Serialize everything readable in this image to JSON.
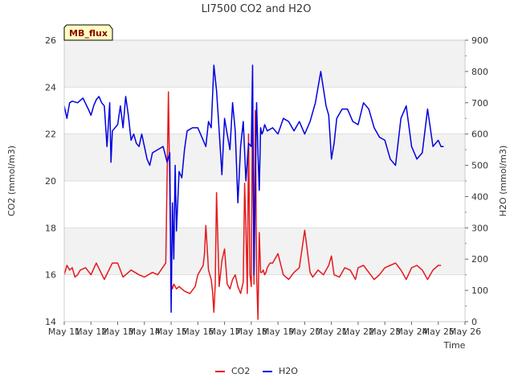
{
  "chart_data": {
    "type": "line",
    "title": "LI7500 CO2 and H2O",
    "badge": "MB_flux",
    "xlabel": "Time",
    "ylabel_left": "CO2 (mmol/m3)",
    "ylabel_right": "H2O (mmol/m3)",
    "xlim": [
      11,
      26
    ],
    "ylim_left": [
      14,
      26
    ],
    "ylim_right": [
      0,
      900
    ],
    "x_ticks": [
      11,
      12,
      13,
      14,
      15,
      16,
      17,
      18,
      19,
      20,
      21,
      22,
      23,
      24,
      25,
      26
    ],
    "x_tick_labels": [
      "May 11",
      "May 12",
      "May 13",
      "May 14",
      "May 15",
      "May 16",
      "May 17",
      "May 18",
      "May 19",
      "May 20",
      "May 21",
      "May 22",
      "May 23",
      "May 24",
      "May 25",
      "May 26"
    ],
    "y_left_ticks": [
      14,
      16,
      18,
      20,
      22,
      24,
      26
    ],
    "y_left_tick_labels": [
      "14",
      "16",
      "18",
      "20",
      "22",
      "24",
      "26"
    ],
    "y_right_ticks": [
      0,
      100,
      200,
      300,
      400,
      500,
      600,
      700,
      800,
      900
    ],
    "y_right_tick_labels": [
      "0",
      "100",
      "200",
      "300",
      "400",
      "500",
      "600",
      "700",
      "800",
      "900"
    ],
    "grid": "horizontal bands",
    "legend_position": "bottom-center",
    "series": [
      {
        "name": "CO2",
        "axis": "left",
        "color": "#e31a1c",
        "x": [
          11.0,
          11.1,
          11.2,
          11.3,
          11.4,
          11.5,
          11.6,
          11.8,
          12.0,
          12.2,
          12.5,
          12.8,
          13.0,
          13.2,
          13.5,
          13.8,
          14.0,
          14.3,
          14.5,
          14.8,
          14.9,
          15.0,
          15.05,
          15.1,
          15.15,
          15.2,
          15.3,
          15.5,
          15.7,
          15.9,
          16.0,
          16.1,
          16.2,
          16.25,
          16.3,
          16.4,
          16.5,
          16.55,
          16.6,
          16.65,
          16.7,
          16.8,
          16.9,
          17.0,
          17.1,
          17.2,
          17.3,
          17.4,
          17.5,
          17.6,
          17.7,
          17.75,
          17.8,
          17.85,
          17.9,
          17.95,
          18.0,
          18.05,
          18.1,
          18.15,
          18.2,
          18.25,
          18.3,
          18.35,
          18.4,
          18.45,
          18.5,
          18.55,
          18.6,
          18.7,
          18.8,
          19.0,
          19.2,
          19.4,
          19.6,
          19.8,
          20.0,
          20.2,
          20.3,
          20.5,
          20.7,
          20.9,
          21.0,
          21.1,
          21.3,
          21.5,
          21.7,
          21.9,
          22.0,
          22.2,
          22.4,
          22.6,
          22.8,
          23.0,
          23.2,
          23.4,
          23.6,
          23.8,
          24.0,
          24.2,
          24.4,
          24.6,
          24.8,
          25.0,
          25.1
        ],
        "values": [
          16.0,
          16.4,
          16.2,
          16.3,
          15.9,
          16.0,
          16.2,
          16.3,
          16.0,
          16.5,
          15.8,
          16.5,
          16.5,
          15.9,
          16.2,
          16.0,
          15.9,
          16.1,
          16.0,
          16.5,
          23.8,
          15.6,
          15.4,
          15.6,
          15.5,
          15.4,
          15.5,
          15.3,
          15.2,
          15.5,
          16.0,
          16.2,
          16.4,
          16.9,
          18.1,
          16.2,
          15.8,
          15.3,
          14.4,
          15.6,
          19.5,
          15.5,
          16.6,
          17.1,
          15.6,
          15.4,
          15.8,
          16.0,
          15.5,
          15.2,
          15.7,
          19.9,
          18.0,
          15.2,
          22.0,
          16.0,
          15.5,
          24.2,
          15.6,
          23.0,
          16.0,
          14.1,
          17.8,
          16.1,
          16.1,
          16.2,
          16.0,
          16.1,
          16.3,
          16.5,
          16.5,
          16.9,
          16.0,
          15.8,
          16.1,
          16.3,
          17.9,
          16.1,
          15.9,
          16.2,
          16.0,
          16.4,
          16.8,
          16.0,
          15.9,
          16.3,
          16.2,
          15.8,
          16.3,
          16.4,
          16.1,
          15.8,
          16.0,
          16.3,
          16.4,
          16.5,
          16.2,
          15.8,
          16.3,
          16.4,
          16.2,
          15.8,
          16.2,
          16.4,
          16.4
        ]
      },
      {
        "name": "H2O",
        "axis": "right",
        "color": "#0000e0",
        "x": [
          11.0,
          11.1,
          11.2,
          11.3,
          11.5,
          11.7,
          11.9,
          12.0,
          12.1,
          12.2,
          12.3,
          12.4,
          12.5,
          12.6,
          12.7,
          12.75,
          12.8,
          12.9,
          13.0,
          13.1,
          13.2,
          13.3,
          13.4,
          13.5,
          13.6,
          13.7,
          13.8,
          13.9,
          14.0,
          14.1,
          14.2,
          14.3,
          14.5,
          14.7,
          14.85,
          14.95,
          15.0,
          15.05,
          15.1,
          15.15,
          15.2,
          15.3,
          15.4,
          15.5,
          15.6,
          15.8,
          16.0,
          16.1,
          16.2,
          16.3,
          16.4,
          16.5,
          16.6,
          16.7,
          16.8,
          16.9,
          17.0,
          17.1,
          17.2,
          17.3,
          17.4,
          17.5,
          17.6,
          17.7,
          17.8,
          17.9,
          18.0,
          18.05,
          18.1,
          18.2,
          18.25,
          18.3,
          18.35,
          18.4,
          18.45,
          18.5,
          18.6,
          18.8,
          19.0,
          19.2,
          19.4,
          19.6,
          19.8,
          20.0,
          20.2,
          20.4,
          20.6,
          20.8,
          20.9,
          21.0,
          21.1,
          21.2,
          21.4,
          21.6,
          21.8,
          22.0,
          22.2,
          22.4,
          22.6,
          22.8,
          23.0,
          23.2,
          23.4,
          23.6,
          23.8,
          24.0,
          24.2,
          24.4,
          24.6,
          24.8,
          25.0,
          25.1,
          25.2
        ],
        "values": [
          690,
          650,
          700,
          705,
          700,
          715,
          680,
          660,
          690,
          710,
          720,
          700,
          690,
          560,
          700,
          510,
          610,
          620,
          630,
          690,
          620,
          720,
          660,
          580,
          600,
          570,
          560,
          600,
          560,
          520,
          500,
          540,
          550,
          560,
          510,
          540,
          30,
          380,
          200,
          500,
          290,
          480,
          460,
          550,
          610,
          620,
          620,
          600,
          580,
          560,
          640,
          620,
          820,
          740,
          610,
          470,
          650,
          600,
          550,
          700,
          610,
          380,
          560,
          640,
          450,
          570,
          560,
          820,
          150,
          700,
          540,
          420,
          620,
          600,
          610,
          630,
          610,
          620,
          600,
          650,
          640,
          610,
          640,
          600,
          640,
          700,
          800,
          690,
          660,
          520,
          570,
          650,
          680,
          680,
          640,
          630,
          700,
          680,
          620,
          590,
          580,
          520,
          500,
          650,
          690,
          560,
          520,
          540,
          680,
          560,
          580,
          560,
          560
        ]
      }
    ]
  }
}
